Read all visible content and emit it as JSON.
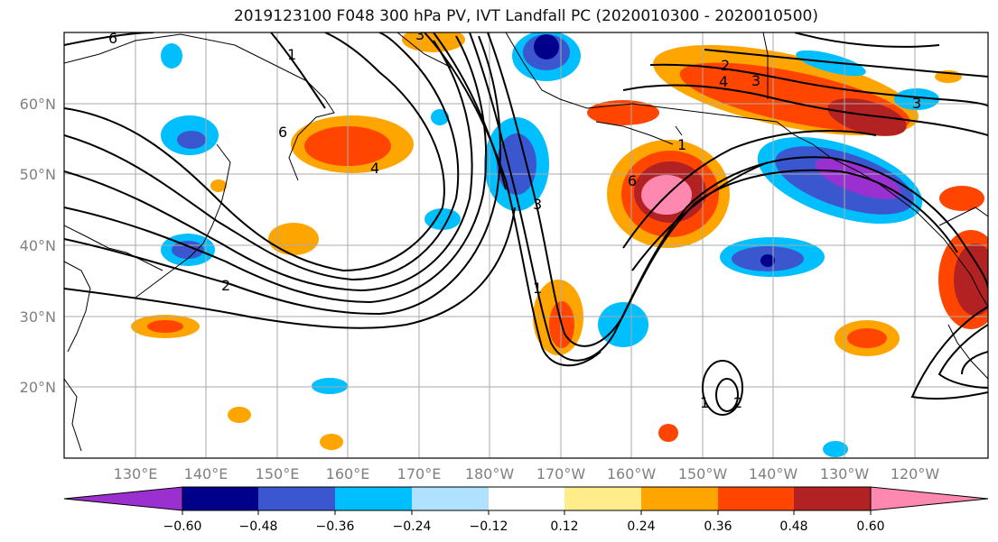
{
  "title": "2019123100 F048 300 hPa PV, IVT Landfall PC (2020010300 - 2020010500)",
  "map": {
    "lat_labels": [
      "60°N",
      "50°N",
      "40°N",
      "30°N",
      "20°N"
    ],
    "lon_labels": [
      "130°E",
      "140°E",
      "150°E",
      "160°E",
      "170°E",
      "180°W",
      "170°W",
      "160°W",
      "150°W",
      "140°W",
      "130°W",
      "120°W"
    ],
    "contour_labels": [
      "6",
      "1",
      "3",
      "2",
      "4",
      "3",
      "6",
      "1",
      "6",
      "4",
      "2",
      "1",
      "2",
      "1",
      "3",
      "3"
    ]
  },
  "colorbar": {
    "colors": [
      "#9b30d0",
      "#00008b",
      "#3a57cf",
      "#00bfff",
      "#b0e2ff",
      "#ffffff",
      "#ffec8b",
      "#ffa500",
      "#ff4500",
      "#b22222",
      "#ff88b0"
    ],
    "tick_labels": [
      "−0.60",
      "−0.48",
      "−0.36",
      "−0.24",
      "−0.12",
      "0.12",
      "0.24",
      "0.36",
      "0.48",
      "0.60"
    ]
  }
}
